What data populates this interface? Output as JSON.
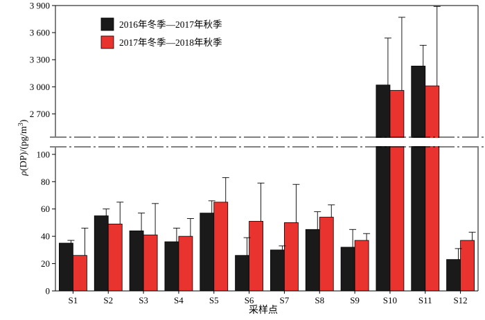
{
  "chart_data": {
    "type": "bar",
    "categories": [
      "S1",
      "S2",
      "S3",
      "S4",
      "S5",
      "S6",
      "S7",
      "S8",
      "S9",
      "S10",
      "S11",
      "S12"
    ],
    "series": [
      {
        "name": "2016年冬季—2017年秋季",
        "color": "#1a1a1a",
        "values": [
          35,
          55,
          44,
          36,
          57,
          26,
          30,
          45,
          32,
          3020,
          3230,
          23
        ],
        "errors": [
          2,
          5,
          13,
          10,
          9,
          13,
          3,
          13,
          13,
          520,
          230,
          8
        ]
      },
      {
        "name": "2017年冬季—2018年秋季",
        "color": "#e8332f",
        "values": [
          26,
          49,
          41,
          40,
          65,
          51,
          50,
          54,
          37,
          2960,
          3010,
          37
        ],
        "errors": [
          20,
          16,
          23,
          13,
          18,
          28,
          28,
          9,
          5,
          810,
          880,
          6
        ]
      }
    ],
    "xlabel": "采样点",
    "ylabel": "ρ(DP)/(pg/m³)",
    "ylabel_parts": {
      "rho": "ρ",
      "main": "(DP)/(pg/m",
      "sup": "3",
      "close": ")"
    },
    "lower_axis": {
      "ylim": [
        0,
        105
      ],
      "ticks": [
        0,
        20,
        40,
        60,
        80,
        100
      ],
      "tick_labels": [
        "0",
        "20",
        "40",
        "60",
        "80",
        "100"
      ]
    },
    "upper_axis": {
      "ylim": [
        2450,
        3900
      ],
      "ticks": [
        2700,
        3000,
        3300,
        3600,
        3900
      ],
      "tick_labels": [
        "2 700",
        "3 000",
        "3 300",
        "3 600",
        "3 900"
      ]
    },
    "broken_axis": true,
    "legend_placement": "top-left",
    "grid": false
  }
}
